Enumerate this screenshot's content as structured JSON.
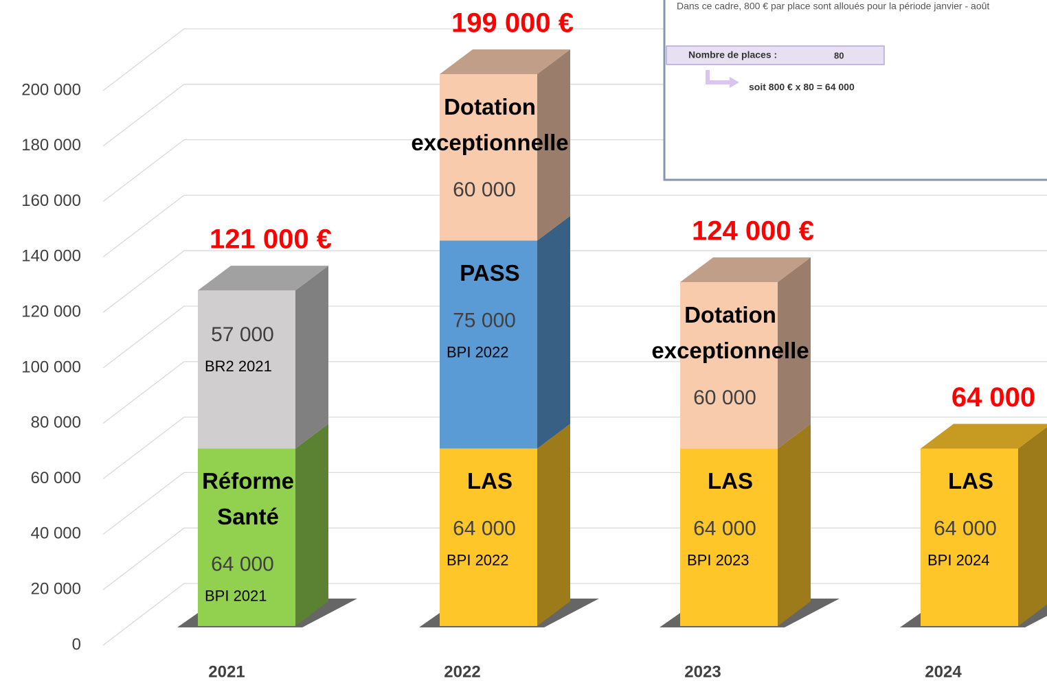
{
  "chart_data": {
    "type": "bar3d_stacked",
    "categories": [
      "2021",
      "2022",
      "2023",
      "2024"
    ],
    "ylim": [
      0,
      200000
    ],
    "yticks": [
      {
        "value": 0,
        "label": "0"
      },
      {
        "value": 20000,
        "label": "20 000"
      },
      {
        "value": 40000,
        "label": "40 000"
      },
      {
        "value": 60000,
        "label": "60 000"
      },
      {
        "value": 80000,
        "label": "80 000"
      },
      {
        "value": 100000,
        "label": "100 000"
      },
      {
        "value": 120000,
        "label": "120 000"
      },
      {
        "value": 140000,
        "label": "140 000"
      },
      {
        "value": 160000,
        "label": "160 000"
      },
      {
        "value": 180000,
        "label": "180 000"
      },
      {
        "value": 200000,
        "label": "200 000"
      }
    ],
    "grid": true,
    "totals": {
      "values": [
        121000,
        199000,
        124000,
        64000
      ],
      "value_labels": [
        "121 000 €",
        "199 000 €",
        "124 000 €",
        "64 000"
      ],
      "color": "#ff0000"
    },
    "bars": [
      {
        "segments": [
          {
            "title": [
              "Réforme",
              "Santé"
            ],
            "value": 64000,
            "value_label": "64 000",
            "source": "BPI 2021",
            "color": "#92d050"
          },
          {
            "value": 57000,
            "value_label": "57 000",
            "source": "BR2 2021",
            "color": "#d0cece"
          }
        ]
      },
      {
        "segments": [
          {
            "title": [
              "LAS"
            ],
            "value": 64000,
            "value_label": "64 000",
            "source": "BPI 2022",
            "color": "#ffc62a"
          },
          {
            "title": [
              "PASS"
            ],
            "value": 75000,
            "value_label": "75 000",
            "source": "BPI 2022",
            "color": "#5b9bd5"
          },
          {
            "title": [
              "Dotation",
              "exceptionnelle"
            ],
            "value": 60000,
            "value_label": "60 000",
            "color": "#f8cbad"
          }
        ]
      },
      {
        "segments": [
          {
            "title": [
              "LAS"
            ],
            "value": 64000,
            "value_label": "64 000",
            "source": "BPI 2023",
            "color": "#ffc62a"
          },
          {
            "title": [
              "Dotation",
              "exceptionnelle"
            ],
            "value": 60000,
            "value_label": "60 000",
            "color": "#f8cbad"
          }
        ]
      },
      {
        "segments": [
          {
            "title": [
              "LAS"
            ],
            "value": 64000,
            "value_label": "64 000",
            "source": "BPI 2024",
            "color": "#ffc62a"
          }
        ]
      }
    ]
  },
  "inset": {
    "note": "Dans ce cadre, 800 € par place sont alloués pour la période janvier - août",
    "places_label": "Nombre de places :",
    "places_value": "80",
    "calculation": "soit 800 € x 80 =  64 000"
  }
}
